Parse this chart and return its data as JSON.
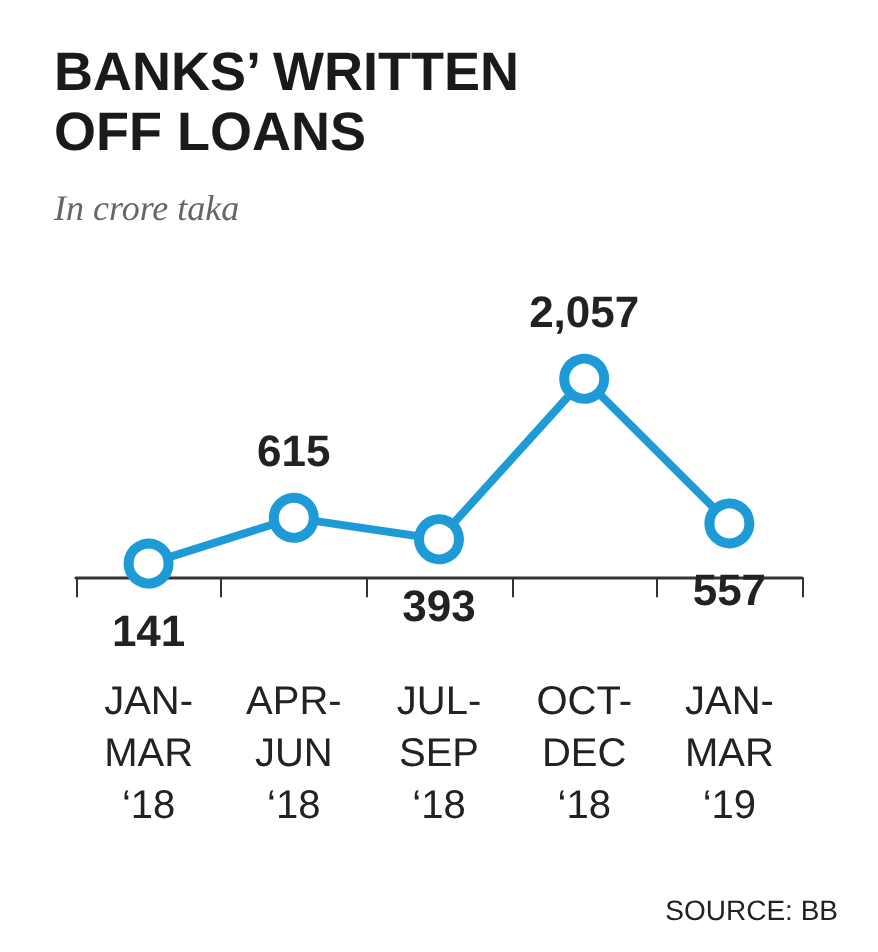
{
  "chart_data": {
    "type": "line",
    "title": "BANKS’ WRITTEN OFF LOANS",
    "subtitle": "In crore taka",
    "categories": [
      "JAN-\nMAR\n‘18",
      "APR-\nJUN\n‘18",
      "JUL-\nSEP\n‘18",
      "OCT-\nDEC\n‘18",
      "JAN-\nMAR\n‘19"
    ],
    "series": [
      {
        "color": "#1e9bd7",
        "values": [
          141,
          615,
          393,
          2057,
          557
        ],
        "value_labels": [
          "141",
          "615",
          "393",
          "2,057",
          "557"
        ]
      }
    ],
    "marker": "circle",
    "line_style": "solid",
    "annotations": [
      "SOURCE: BB"
    ]
  }
}
